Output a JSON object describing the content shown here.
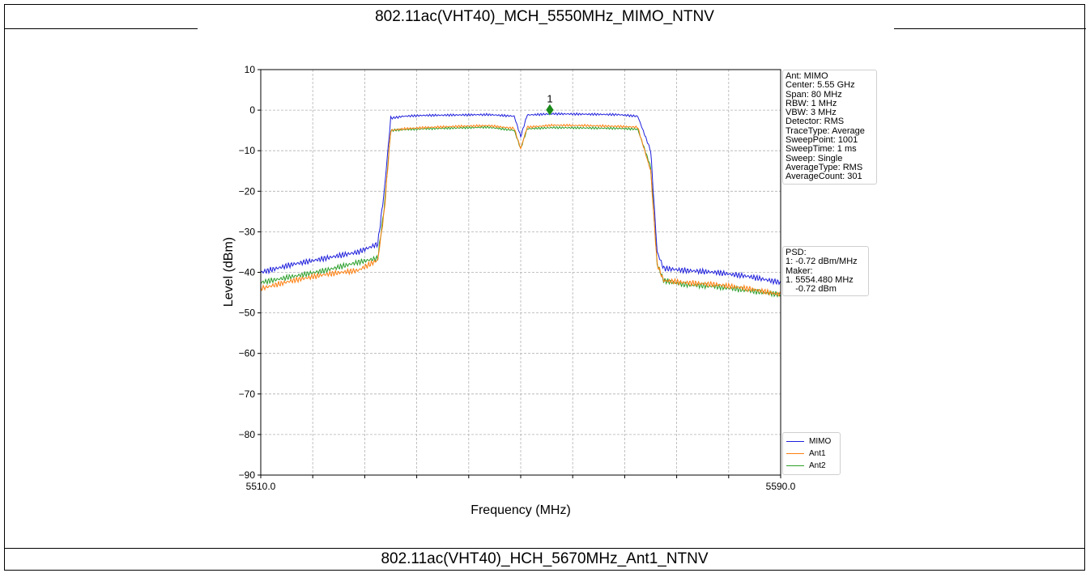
{
  "header": {
    "title": "802.11ac(VHT40)_MCH_5550MHz_MIMO_NTNV"
  },
  "footer": {
    "title": "802.11ac(VHT40)_HCH_5670MHz_Ant1_NTNV"
  },
  "info_box": {
    "lines": [
      "Ant: MIMO",
      "Center: 5.55 GHz",
      "Span: 80 MHz",
      "RBW: 1 MHz",
      "VBW: 3 MHz",
      "Detector: RMS",
      "TraceType: Average",
      "SweepPoint: 1001",
      "SweepTime: 1 ms",
      "Sweep: Single",
      "AverageType: RMS",
      "AverageCount: 301"
    ]
  },
  "psd_box": {
    "lines": [
      "PSD:",
      "1: -0.72 dBm/MHz",
      "Maker:",
      "1. 5554.480 MHz",
      "    -0.72 dBm"
    ]
  },
  "colors": {
    "MIMO": "#1f1fdc",
    "Ant1": "#ff7f0e",
    "Ant2": "#2ca02c",
    "marker": "#1a8a1a"
  },
  "chart_data": {
    "type": "line",
    "title": "",
    "xlabel": "Frequency (MHz)",
    "ylabel": "Level (dBm)",
    "xlim": [
      5510.0,
      5590.0
    ],
    "ylim": [
      -90,
      10
    ],
    "x_tick_labels": [
      "5510.0",
      "5590.0"
    ],
    "y_ticks": [
      10,
      0,
      -10,
      -20,
      -30,
      -40,
      -50,
      -60,
      -70,
      -80,
      -90
    ],
    "y_tick_labels": [
      "10",
      "0",
      "−10",
      "−20",
      "−30",
      "−40",
      "−50",
      "−60",
      "−70",
      "−80",
      "−90"
    ],
    "grid": true,
    "legend_position": "bottom-right",
    "series": [
      {
        "name": "MIMO",
        "x": [
          5510,
          5515,
          5520,
          5525,
          5528,
          5529,
          5530,
          5532,
          5535,
          5540,
          5545,
          5549,
          5550,
          5551,
          5555,
          5560,
          5565,
          5568,
          5570,
          5571,
          5572,
          5575,
          5580,
          5585,
          5590
        ],
        "y": [
          -40.0,
          -38.0,
          -36.5,
          -35.0,
          -33.0,
          -20.0,
          -2.0,
          -1.5,
          -1.3,
          -1.2,
          -1.1,
          -1.5,
          -6.5,
          -1.2,
          -0.9,
          -1.0,
          -1.1,
          -1.5,
          -10.0,
          -35.0,
          -39.0,
          -39.5,
          -40.0,
          -41.0,
          -42.5
        ]
      },
      {
        "name": "Ant1",
        "x": [
          5510,
          5515,
          5520,
          5525,
          5528,
          5529,
          5530,
          5532,
          5535,
          5540,
          5545,
          5549,
          5550,
          5551,
          5555,
          5560,
          5565,
          5568,
          5570,
          5571,
          5572,
          5575,
          5580,
          5585,
          5590
        ],
        "y": [
          -44.0,
          -42.0,
          -40.5,
          -39.5,
          -37.0,
          -25.0,
          -5.0,
          -4.6,
          -4.3,
          -4.0,
          -3.8,
          -4.5,
          -9.5,
          -4.2,
          -3.7,
          -3.8,
          -4.0,
          -4.2,
          -15.0,
          -38.0,
          -42.0,
          -42.5,
          -43.0,
          -44.0,
          -45.5
        ]
      },
      {
        "name": "Ant2",
        "x": [
          5510,
          5515,
          5520,
          5525,
          5528,
          5529,
          5530,
          5532,
          5535,
          5540,
          5545,
          5549,
          5550,
          5551,
          5555,
          5560,
          5565,
          5568,
          5570,
          5571,
          5572,
          5575,
          5580,
          5585,
          5590
        ],
        "y": [
          -42.5,
          -41.0,
          -39.5,
          -37.5,
          -36.5,
          -24.0,
          -5.0,
          -4.8,
          -4.6,
          -4.4,
          -4.2,
          -5.0,
          -9.5,
          -4.6,
          -4.3,
          -4.4,
          -4.5,
          -4.7,
          -14.0,
          -38.0,
          -42.0,
          -43.0,
          -43.5,
          -44.5,
          -45.5
        ]
      }
    ],
    "marker": {
      "label": "1",
      "x": 5554.48,
      "y": -0.72,
      "series": "MIMO"
    }
  }
}
